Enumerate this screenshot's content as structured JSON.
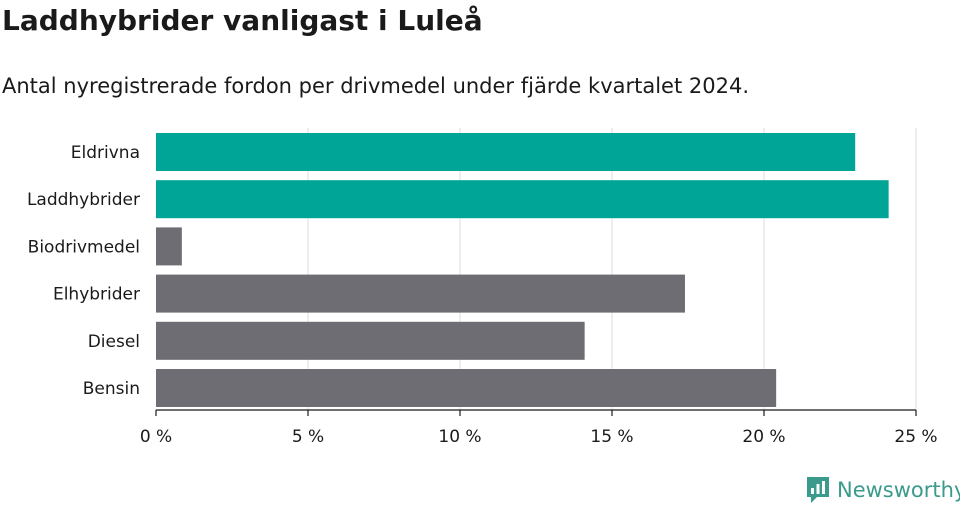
{
  "title": "Laddhybrider vanligast i Luleå",
  "subtitle": "Antal nyregistrerade fordon per drivmedel under fjärde kvartalet 2024.",
  "brand": "Newsworthy",
  "colors": {
    "highlight": "#00a597",
    "default": "#6e6d73",
    "grid": "#dcdcdc",
    "axis": "#1a1a1a"
  },
  "chart_data": {
    "type": "bar",
    "orientation": "horizontal",
    "categories": [
      "Eldrivna",
      "Laddhybrider",
      "Biodrivmedel",
      "Elhybrider",
      "Diesel",
      "Bensin"
    ],
    "values": [
      23.0,
      24.1,
      0.85,
      17.4,
      14.1,
      20.4
    ],
    "highlight": [
      true,
      true,
      false,
      false,
      false,
      false
    ],
    "unit": "%",
    "xlim": [
      0,
      25
    ],
    "xticks": [
      0,
      5,
      10,
      15,
      20,
      25
    ],
    "xtick_labels": [
      "0 %",
      "5 %",
      "10 %",
      "15 %",
      "20 %",
      "25 %"
    ],
    "grid": true,
    "xlabel": "",
    "ylabel": ""
  }
}
